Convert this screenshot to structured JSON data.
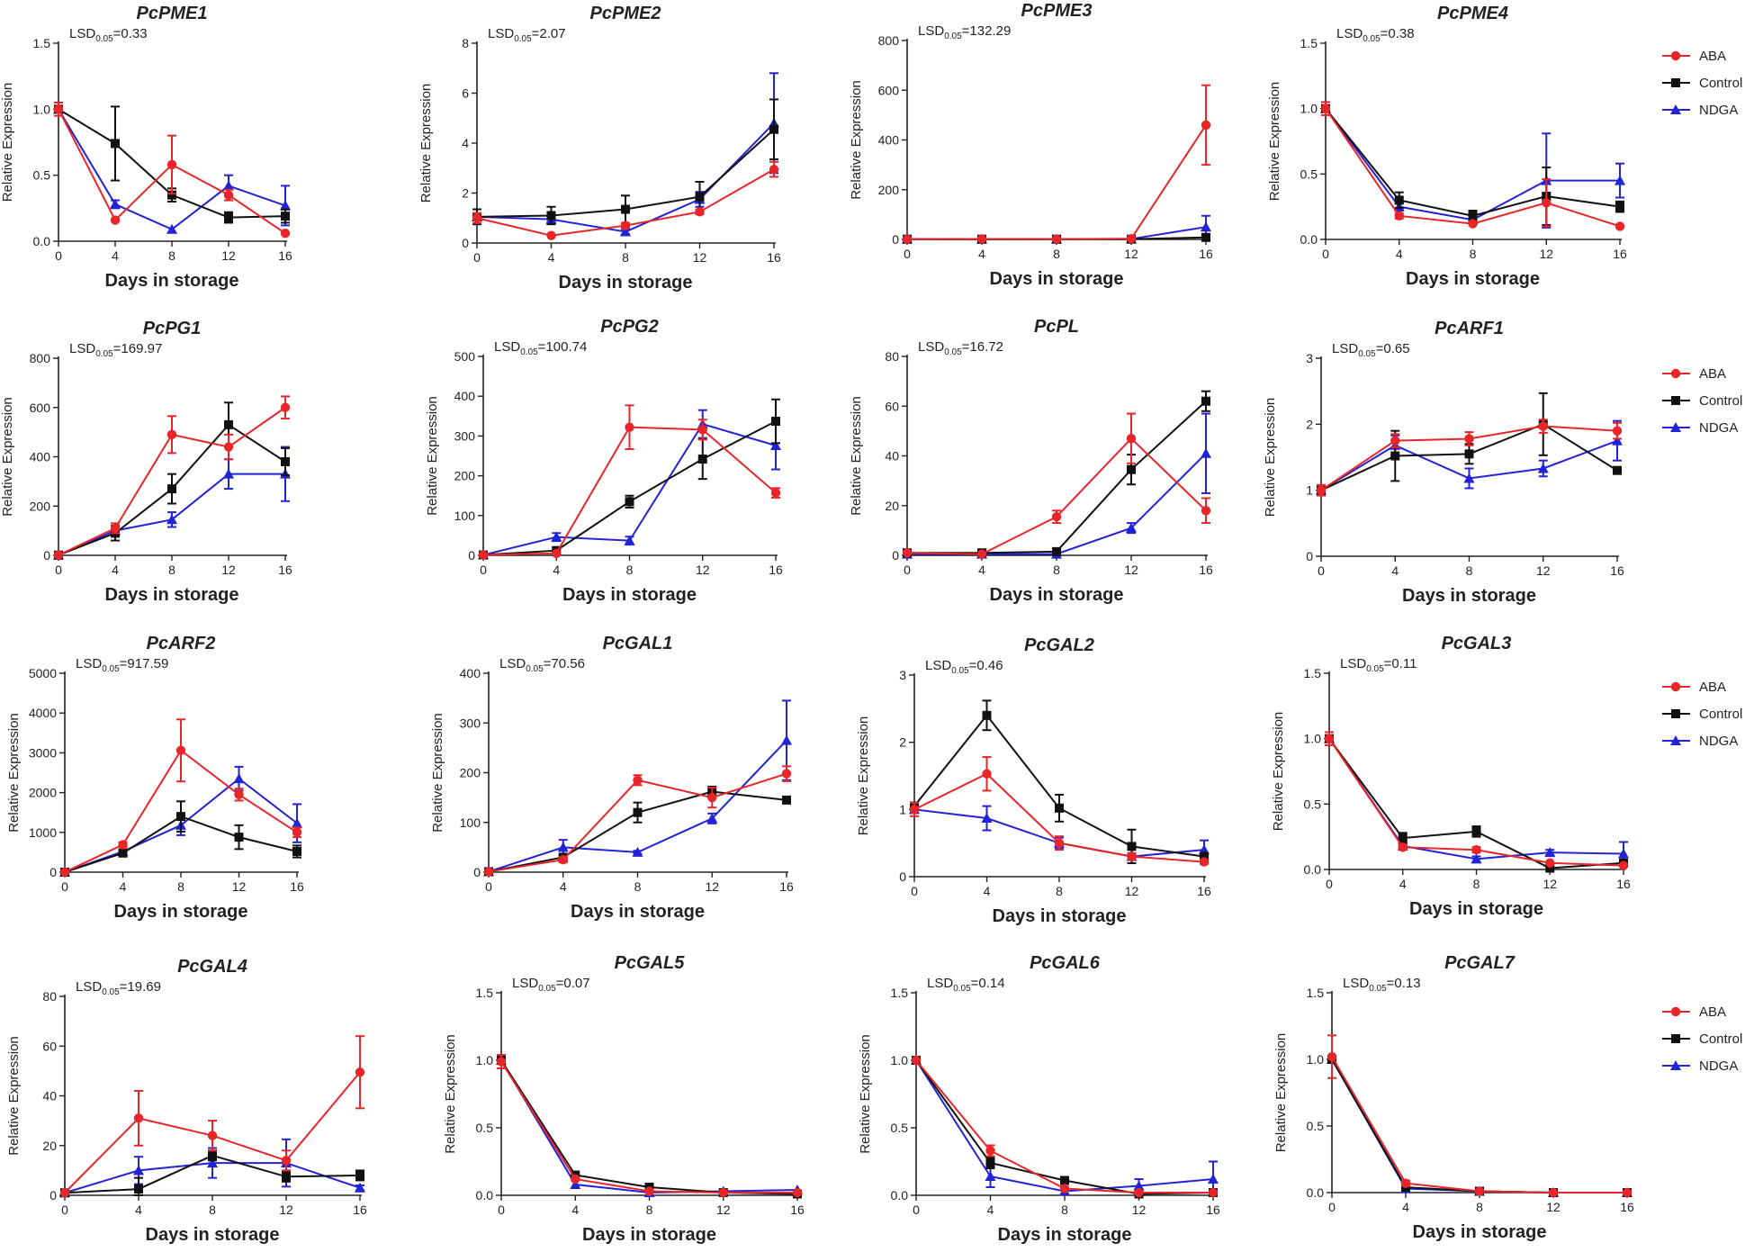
{
  "x_categories": [
    0,
    4,
    8,
    12,
    16
  ],
  "xlabel": "Days in storage",
  "ylabel": "Relative Expression",
  "lsd_prefix": "LSD",
  "lsd_subscript": "0.05",
  "colors": {
    "ABA": "#e8262a",
    "Control": "#111111",
    "NDGA": "#2323d6"
  },
  "legend": [
    "ABA",
    "Control",
    "NDGA"
  ],
  "chart_data": [
    {
      "type": "line",
      "title": "PcPME1",
      "lsd": "=0.33",
      "ylim": [
        0,
        1.5
      ],
      "yticks": [
        "0.0",
        "0.5",
        "1.0",
        "1.5"
      ],
      "series": [
        {
          "name": "ABA",
          "values": [
            1.0,
            0.16,
            0.58,
            0.35,
            0.06
          ],
          "errors": [
            0.05,
            0.01,
            0.22,
            0.04,
            0.01
          ]
        },
        {
          "name": "Control",
          "values": [
            1.0,
            0.74,
            0.35,
            0.18,
            0.19
          ],
          "errors": [
            0.02,
            0.28,
            0.05,
            0.04,
            0.05
          ]
        },
        {
          "name": "NDGA",
          "values": [
            1.0,
            0.28,
            0.09,
            0.42,
            0.27
          ],
          "errors": [
            0.02,
            0.03,
            0.01,
            0.08,
            0.15
          ]
        }
      ]
    },
    {
      "type": "line",
      "title": "PcPME2",
      "lsd": "=2.07",
      "ylim": [
        0,
        8
      ],
      "yticks": [
        "0",
        "2",
        "4",
        "6",
        "8"
      ],
      "series": [
        {
          "name": "ABA",
          "values": [
            1.0,
            0.3,
            0.7,
            1.25,
            2.95
          ],
          "errors": [
            0.2,
            0.05,
            0.1,
            0.1,
            0.3
          ]
        },
        {
          "name": "Control",
          "values": [
            1.05,
            1.1,
            1.35,
            1.85,
            4.55
          ],
          "errors": [
            0.3,
            0.35,
            0.55,
            0.6,
            1.2
          ]
        },
        {
          "name": "NDGA",
          "values": [
            1.05,
            0.95,
            0.45,
            1.75,
            4.8
          ],
          "errors": [
            0.1,
            0.1,
            0.1,
            0.3,
            2.0
          ]
        }
      ]
    },
    {
      "type": "line",
      "title": "PcPME3",
      "lsd": "=132.29",
      "ylim": [
        0,
        800
      ],
      "yticks": [
        "0",
        "200",
        "400",
        "600",
        "800"
      ],
      "series": [
        {
          "name": "ABA",
          "values": [
            1,
            2,
            1,
            3,
            460
          ],
          "errors": [
            0,
            0,
            0,
            0,
            160
          ]
        },
        {
          "name": "Control",
          "values": [
            1,
            1,
            1,
            1,
            8
          ],
          "errors": [
            0,
            0,
            0,
            0,
            2
          ]
        },
        {
          "name": "NDGA",
          "values": [
            1,
            1,
            1,
            2,
            50
          ],
          "errors": [
            0,
            0,
            0,
            0,
            45
          ]
        }
      ]
    },
    {
      "type": "line",
      "title": "PcPME4",
      "lsd": "=0.38",
      "ylim": [
        0,
        1.5
      ],
      "yticks": [
        "0.0",
        "0.5",
        "1.0",
        "1.5"
      ],
      "series": [
        {
          "name": "ABA",
          "values": [
            1.0,
            0.18,
            0.12,
            0.28,
            0.1
          ],
          "errors": [
            0.05,
            0.02,
            0.01,
            0.18,
            0.01
          ]
        },
        {
          "name": "Control",
          "values": [
            1.0,
            0.3,
            0.18,
            0.33,
            0.25
          ],
          "errors": [
            0.02,
            0.06,
            0.04,
            0.22,
            0.04
          ]
        },
        {
          "name": "NDGA",
          "values": [
            1.0,
            0.25,
            0.15,
            0.45,
            0.45
          ],
          "errors": [
            0.02,
            0.03,
            0.02,
            0.36,
            0.13
          ]
        }
      ]
    },
    {
      "type": "line",
      "title": "PcPG1",
      "lsd": "=169.97",
      "ylim": [
        0,
        800
      ],
      "yticks": [
        "0",
        "200",
        "400",
        "600",
        "800"
      ],
      "series": [
        {
          "name": "ABA",
          "values": [
            1,
            110,
            490,
            440,
            600
          ],
          "errors": [
            0,
            20,
            75,
            50,
            45
          ]
        },
        {
          "name": "Control",
          "values": [
            1,
            90,
            270,
            530,
            380
          ],
          "errors": [
            0,
            30,
            60,
            90,
            55
          ]
        },
        {
          "name": "NDGA",
          "values": [
            1,
            100,
            145,
            330,
            330
          ],
          "errors": [
            0,
            10,
            30,
            60,
            110
          ]
        }
      ]
    },
    {
      "type": "line",
      "title": "PcPG2",
      "lsd": "=100.74",
      "ylim": [
        0,
        500
      ],
      "yticks": [
        "0",
        "100",
        "200",
        "300",
        "400",
        "500"
      ],
      "series": [
        {
          "name": "ABA",
          "values": [
            1,
            5,
            322,
            316,
            157
          ],
          "errors": [
            0,
            2,
            55,
            25,
            12
          ]
        },
        {
          "name": "Control",
          "values": [
            1,
            12,
            135,
            242,
            337
          ],
          "errors": [
            0,
            3,
            15,
            50,
            55
          ]
        },
        {
          "name": "NDGA",
          "values": [
            1,
            46,
            37,
            330,
            276
          ],
          "errors": [
            0,
            10,
            10,
            35,
            60
          ]
        }
      ]
    },
    {
      "type": "line",
      "title": "PcPL",
      "lsd": "=16.72",
      "ylim": [
        0,
        80
      ],
      "yticks": [
        "0",
        "20",
        "40",
        "60",
        "80"
      ],
      "series": [
        {
          "name": "ABA",
          "values": [
            1,
            0.5,
            15.5,
            47,
            18
          ],
          "errors": [
            0.2,
            0.1,
            2.5,
            10,
            5
          ]
        },
        {
          "name": "Control",
          "values": [
            1,
            1,
            1.5,
            34.5,
            62
          ],
          "errors": [
            0.2,
            0.2,
            0.5,
            6,
            4
          ]
        },
        {
          "name": "NDGA",
          "values": [
            0.5,
            0.5,
            0.5,
            11,
            41
          ],
          "errors": [
            0.1,
            0.1,
            0.1,
            2,
            16
          ]
        }
      ]
    },
    {
      "type": "line",
      "title": "PcARF1",
      "lsd": "=0.65",
      "ylim": [
        0,
        3
      ],
      "yticks": [
        "0",
        "1",
        "2",
        "3"
      ],
      "series": [
        {
          "name": "ABA",
          "values": [
            1.0,
            1.75,
            1.78,
            1.97,
            1.9
          ],
          "errors": [
            0.08,
            0.1,
            0.1,
            0.1,
            0.12
          ]
        },
        {
          "name": "Control",
          "values": [
            1.0,
            1.52,
            1.55,
            2.0,
            1.3
          ],
          "errors": [
            0.05,
            0.38,
            0.15,
            0.47,
            0.03
          ]
        },
        {
          "name": "NDGA",
          "values": [
            1.0,
            1.68,
            1.18,
            1.33,
            1.75
          ],
          "errors": [
            0.03,
            0.15,
            0.15,
            0.12,
            0.3
          ]
        }
      ]
    },
    {
      "type": "line",
      "title": "PcARF2",
      "lsd": "=917.59",
      "ylim": [
        0,
        5000
      ],
      "yticks": [
        "0",
        "1000",
        "2000",
        "3000",
        "4000",
        "5000"
      ],
      "series": [
        {
          "name": "ABA",
          "values": [
            1,
            690,
            3060,
            1950,
            1000
          ],
          "errors": [
            0,
            60,
            780,
            150,
            120
          ]
        },
        {
          "name": "Control",
          "values": [
            1,
            480,
            1400,
            880,
            520
          ],
          "errors": [
            0,
            60,
            380,
            300,
            150
          ]
        },
        {
          "name": "NDGA",
          "values": [
            1,
            520,
            1180,
            2350,
            1230
          ],
          "errors": [
            0,
            50,
            250,
            300,
            480
          ]
        }
      ]
    },
    {
      "type": "line",
      "title": "PcGAL1",
      "lsd": "=70.56",
      "ylim": [
        0,
        400
      ],
      "yticks": [
        "0",
        "100",
        "200",
        "300",
        "400"
      ],
      "series": [
        {
          "name": "ABA",
          "values": [
            1,
            25,
            185,
            150,
            198
          ],
          "errors": [
            0,
            5,
            10,
            20,
            15
          ]
        },
        {
          "name": "Control",
          "values": [
            1,
            30,
            120,
            162,
            145
          ],
          "errors": [
            0,
            5,
            20,
            10,
            5
          ]
        },
        {
          "name": "NDGA",
          "values": [
            1,
            50,
            40,
            108,
            265
          ],
          "errors": [
            0,
            15,
            3,
            10,
            80
          ]
        }
      ]
    },
    {
      "type": "line",
      "title": "PcGAL2",
      "lsd": "=0.46",
      "ylim": [
        0,
        3
      ],
      "yticks": [
        "0",
        "1",
        "2",
        "3"
      ],
      "series": [
        {
          "name": "ABA",
          "values": [
            1.0,
            1.53,
            0.5,
            0.3,
            0.22
          ],
          "errors": [
            0.1,
            0.25,
            0.1,
            0.05,
            0.03
          ]
        },
        {
          "name": "Control",
          "values": [
            1.05,
            2.4,
            1.02,
            0.45,
            0.3
          ],
          "errors": [
            0.05,
            0.22,
            0.2,
            0.25,
            0.05
          ]
        },
        {
          "name": "NDGA",
          "values": [
            1.0,
            0.87,
            0.5,
            0.3,
            0.4
          ],
          "errors": [
            0.05,
            0.18,
            0.08,
            0.04,
            0.14
          ]
        }
      ]
    },
    {
      "type": "line",
      "title": "PcGAL3",
      "lsd": "=0.11",
      "ylim": [
        0,
        1.5
      ],
      "yticks": [
        "0.0",
        "0.5",
        "1.0",
        "1.5"
      ],
      "series": [
        {
          "name": "ABA",
          "values": [
            1.0,
            0.17,
            0.15,
            0.05,
            0.03
          ],
          "errors": [
            0.05,
            0.02,
            0.02,
            0.01,
            0.01
          ]
        },
        {
          "name": "Control",
          "values": [
            1.0,
            0.24,
            0.29,
            0.01,
            0.05
          ],
          "errors": [
            0.02,
            0.04,
            0.04,
            0.01,
            0.01
          ]
        },
        {
          "name": "NDGA",
          "values": [
            1.0,
            0.18,
            0.08,
            0.13,
            0.12
          ],
          "errors": [
            0.02,
            0.02,
            0.02,
            0.02,
            0.09
          ]
        }
      ]
    },
    {
      "type": "line",
      "title": "PcGAL4",
      "lsd": "=19.69",
      "ylim": [
        0,
        80
      ],
      "yticks": [
        "0",
        "20",
        "40",
        "60",
        "80"
      ],
      "series": [
        {
          "name": "ABA",
          "values": [
            1,
            31,
            24,
            14,
            49.5
          ],
          "errors": [
            0.2,
            11,
            6,
            4,
            14.5
          ]
        },
        {
          "name": "Control",
          "values": [
            1,
            2.5,
            16,
            7.5,
            8
          ],
          "errors": [
            0.2,
            4.5,
            2,
            2,
            2
          ]
        },
        {
          "name": "NDGA",
          "values": [
            1,
            10,
            13,
            13,
            3
          ],
          "errors": [
            0.2,
            5.5,
            6,
            9.5,
            1
          ]
        }
      ]
    },
    {
      "type": "line",
      "title": "PcGAL5",
      "lsd": "=0.07",
      "ylim": [
        0,
        1.5
      ],
      "yticks": [
        "0.0",
        "0.5",
        "1.0",
        "1.5"
      ],
      "series": [
        {
          "name": "ABA",
          "values": [
            0.99,
            0.12,
            0.03,
            0.02,
            0.02
          ],
          "errors": [
            0.05,
            0.01,
            0.01,
            0.01,
            0.01
          ]
        },
        {
          "name": "Control",
          "values": [
            1.0,
            0.15,
            0.06,
            0.02,
            0.01
          ],
          "errors": [
            0.02,
            0.01,
            0.01,
            0.01,
            0.01
          ]
        },
        {
          "name": "NDGA",
          "values": [
            1.0,
            0.08,
            0.02,
            0.03,
            0.04
          ],
          "errors": [
            0.02,
            0.01,
            0.01,
            0.01,
            0.01
          ]
        }
      ]
    },
    {
      "type": "line",
      "title": "PcGAL6",
      "lsd": "=0.14",
      "ylim": [
        0,
        1.5
      ],
      "yticks": [
        "0.0",
        "0.5",
        "1.0",
        "1.5"
      ],
      "series": [
        {
          "name": "ABA",
          "values": [
            1.0,
            0.33,
            0.05,
            0.02,
            0.02
          ],
          "errors": [
            0.01,
            0.04,
            0.01,
            0.01,
            0.01
          ]
        },
        {
          "name": "Control",
          "values": [
            1.0,
            0.24,
            0.11,
            0.01,
            0.02
          ],
          "errors": [
            0.01,
            0.04,
            0.02,
            0.01,
            0.01
          ]
        },
        {
          "name": "NDGA",
          "values": [
            1.0,
            0.14,
            0.03,
            0.07,
            0.12
          ],
          "errors": [
            0.01,
            0.08,
            0.02,
            0.05,
            0.13
          ]
        }
      ]
    },
    {
      "type": "line",
      "title": "PcGAL7",
      "lsd": "=0.13",
      "ylim": [
        0,
        1.5
      ],
      "yticks": [
        "0.0",
        "0.5",
        "1.0",
        "1.5"
      ],
      "series": [
        {
          "name": "ABA",
          "values": [
            1.02,
            0.07,
            0.01,
            0.0,
            0.0
          ],
          "errors": [
            0.16,
            0.02,
            0.01,
            0.0,
            0.0
          ]
        },
        {
          "name": "Control",
          "values": [
            1.0,
            0.04,
            0.01,
            0.0,
            0.0
          ],
          "errors": [
            0.02,
            0.01,
            0.0,
            0.0,
            0.0
          ]
        },
        {
          "name": "NDGA",
          "values": [
            1.0,
            0.03,
            0.01,
            0.0,
            0.0
          ],
          "errors": [
            0.02,
            0.01,
            0.0,
            0.0,
            0.0
          ]
        }
      ]
    }
  ]
}
